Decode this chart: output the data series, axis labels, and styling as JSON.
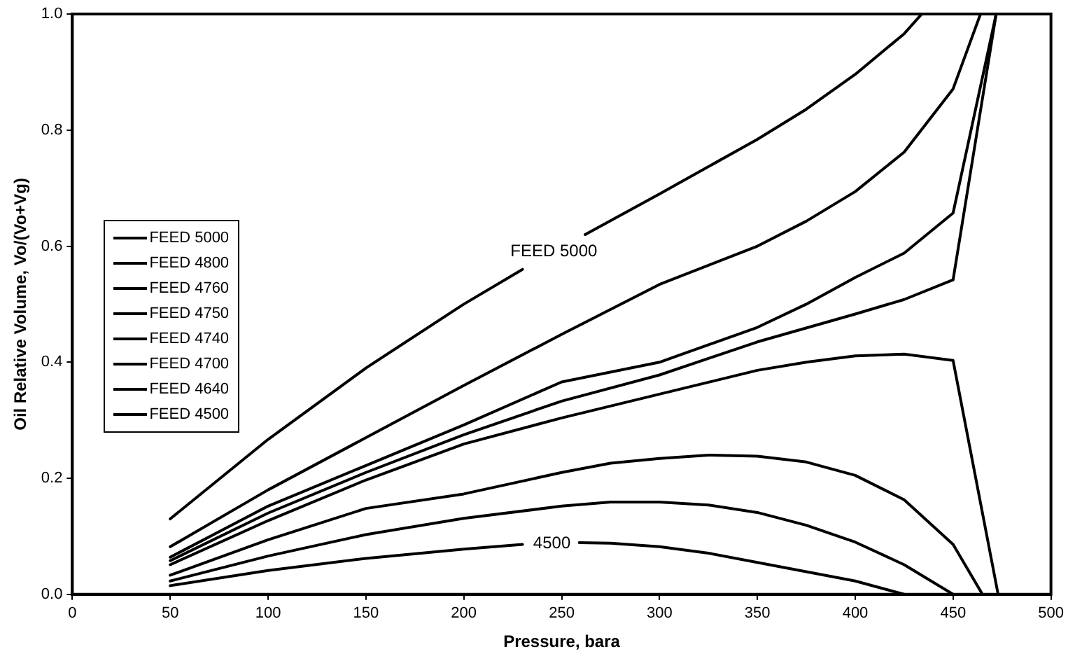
{
  "chart_data": {
    "type": "line",
    "xlabel": "Pressure, bara",
    "ylabel": "Oil Relative Volume, Vo/(Vo+Vg)",
    "xlim": [
      0,
      500
    ],
    "xticks": [
      0,
      50,
      100,
      150,
      200,
      250,
      300,
      350,
      400,
      450,
      500
    ],
    "ylim": [
      0,
      1
    ],
    "yticks": [
      {
        "value": 0,
        "label": "0.0"
      },
      {
        "value": 0.2,
        "label": "0.2"
      },
      {
        "value": 0.4,
        "label": "0.4"
      },
      {
        "value": 0.6,
        "label": "0.6"
      },
      {
        "value": 0.8,
        "label": "0.8"
      },
      {
        "value": 1,
        "label": "1.0"
      }
    ],
    "grid": false,
    "legend": "left",
    "marker": "none",
    "line_style": "solid",
    "series": [
      {
        "name": "FEED 5000",
        "color": "#000000",
        "x": [
          50,
          100,
          150,
          200,
          230,
          246,
          262,
          300,
          350,
          375,
          400,
          425,
          434
        ],
        "values": [
          0.13,
          0.267,
          0.39,
          0.5,
          0.56,
          null,
          0.62,
          0.69,
          0.784,
          0.836,
          0.896,
          0.966,
          1.0
        ]
      },
      {
        "name": "FEED 4800",
        "color": "#000000",
        "x": [
          50,
          100,
          150,
          200,
          250,
          300,
          350,
          375,
          400,
          425,
          450,
          464
        ],
        "values": [
          0.082,
          0.18,
          0.27,
          0.36,
          0.448,
          0.534,
          0.6,
          0.643,
          0.694,
          0.762,
          0.871,
          1.0
        ]
      },
      {
        "name": "FEED 4760",
        "color": "#000000",
        "x": [
          50,
          100,
          150,
          200,
          250,
          300,
          350,
          375,
          400,
          425,
          450,
          472
        ],
        "values": [
          0.064,
          0.152,
          0.222,
          0.292,
          0.366,
          0.4,
          0.46,
          0.5,
          0.546,
          0.588,
          0.657,
          1.0
        ]
      },
      {
        "name": "FEED 4750",
        "color": "#000000",
        "x": [
          50,
          100,
          150,
          200,
          250,
          300,
          350,
          400,
          425,
          450,
          472
        ],
        "values": [
          0.058,
          0.14,
          0.21,
          0.275,
          0.333,
          0.378,
          0.435,
          0.483,
          0.508,
          0.542,
          1.0
        ]
      },
      {
        "name": "FEED 4740",
        "color": "#000000",
        "x": [
          50,
          100,
          150,
          200,
          250,
          300,
          350,
          375,
          400,
          425,
          450,
          473
        ],
        "values": [
          0.051,
          0.127,
          0.197,
          0.259,
          0.304,
          0.345,
          0.386,
          0.4,
          0.411,
          0.414,
          0.403,
          0
        ]
      },
      {
        "name": "FEED 4700",
        "color": "#000000",
        "x": [
          50,
          100,
          150,
          200,
          250,
          275,
          300,
          325,
          350,
          375,
          400,
          425,
          450,
          465
        ],
        "values": [
          0.033,
          0.094,
          0.148,
          0.173,
          0.21,
          0.226,
          0.234,
          0.24,
          0.238,
          0.228,
          0.205,
          0.163,
          0.086,
          0
        ]
      },
      {
        "name": "FEED 4640",
        "color": "#000000",
        "x": [
          50,
          100,
          150,
          200,
          250,
          275,
          300,
          325,
          350,
          375,
          400,
          425,
          450
        ],
        "values": [
          0.023,
          0.066,
          0.103,
          0.131,
          0.152,
          0.159,
          0.159,
          0.154,
          0.141,
          0.119,
          0.09,
          0.051,
          0
        ]
      },
      {
        "name": "FEED 4500",
        "color": "#000000",
        "x": [
          50,
          100,
          150,
          200,
          230,
          245,
          259,
          275,
          300,
          325,
          350,
          375,
          400,
          425
        ],
        "values": [
          0.015,
          0.041,
          0.062,
          0.078,
          0.086,
          null,
          0.089,
          0.088,
          0.082,
          0.071,
          0.055,
          0.039,
          0.023,
          0
        ]
      }
    ],
    "annotations": [
      "FEED 5000",
      "4500"
    ]
  }
}
